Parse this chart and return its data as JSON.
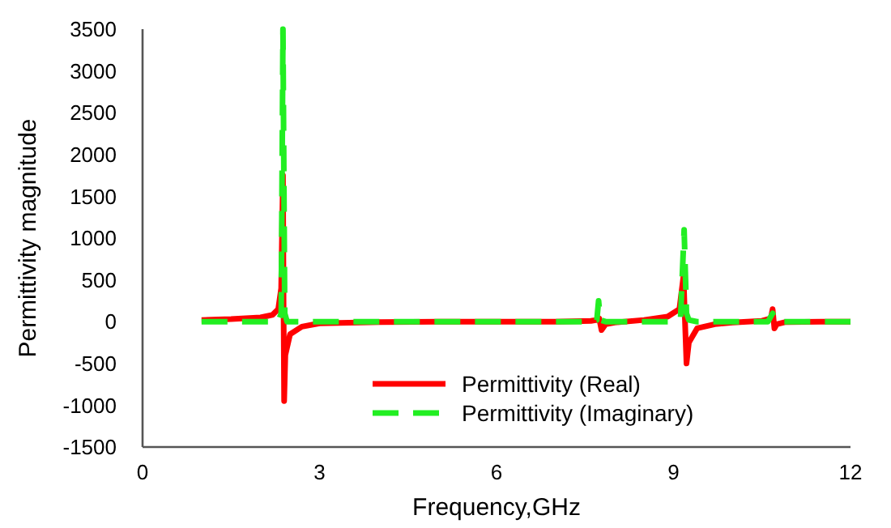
{
  "chart_data": {
    "type": "line",
    "xlabel": "Frequency,GHz",
    "ylabel": "Permittivity magnitude",
    "xlim": [
      0,
      12
    ],
    "xticks": [
      0,
      3,
      6,
      9,
      12
    ],
    "ylim": [
      -1500,
      3500
    ],
    "yticks": [
      -1500,
      -1000,
      -500,
      0,
      500,
      1000,
      1500,
      2000,
      2500,
      3000,
      3500
    ],
    "grid": false,
    "legend": "bottom",
    "series": [
      {
        "name": "Permittivity (Real)",
        "color": "#ff0000",
        "line_style": "solid",
        "x": [
          1,
          1.5,
          2,
          2.2,
          2.3,
          2.35,
          2.38,
          2.39,
          2.4,
          2.42,
          2.5,
          2.7,
          3,
          4,
          5,
          6,
          7,
          7.6,
          7.7,
          7.74,
          7.78,
          7.85,
          8,
          8.5,
          8.9,
          9.1,
          9.17,
          9.19,
          9.22,
          9.26,
          9.4,
          9.7,
          10,
          10.5,
          10.65,
          10.68,
          10.71,
          10.75,
          10.9,
          11.5,
          12
        ],
        "values": [
          20,
          30,
          50,
          80,
          150,
          400,
          1750,
          200,
          -950,
          -400,
          -150,
          -60,
          -20,
          -5,
          0,
          0,
          0,
          10,
          20,
          40,
          -100,
          -30,
          -10,
          20,
          60,
          150,
          550,
          100,
          -500,
          -250,
          -80,
          -30,
          -10,
          10,
          40,
          150,
          -80,
          -30,
          -5,
          0,
          0
        ]
      },
      {
        "name": "Permittivity (Imaginary)",
        "color": "#22ee22",
        "line_style": "dashed",
        "x": [
          1,
          2,
          2.3,
          2.35,
          2.38,
          2.41,
          2.45,
          3,
          4,
          5,
          6,
          7,
          7.6,
          7.7,
          7.73,
          7.76,
          7.85,
          8,
          9,
          9.12,
          9.18,
          9.2,
          9.22,
          9.26,
          9.4,
          10,
          10.6,
          10.68,
          10.72,
          10.8,
          11,
          12
        ],
        "values": [
          0,
          0,
          0,
          100,
          3500,
          100,
          0,
          0,
          0,
          0,
          0,
          0,
          0,
          20,
          250,
          20,
          0,
          0,
          0,
          50,
          1100,
          600,
          100,
          20,
          0,
          0,
          0,
          100,
          20,
          0,
          0,
          0
        ]
      }
    ]
  }
}
